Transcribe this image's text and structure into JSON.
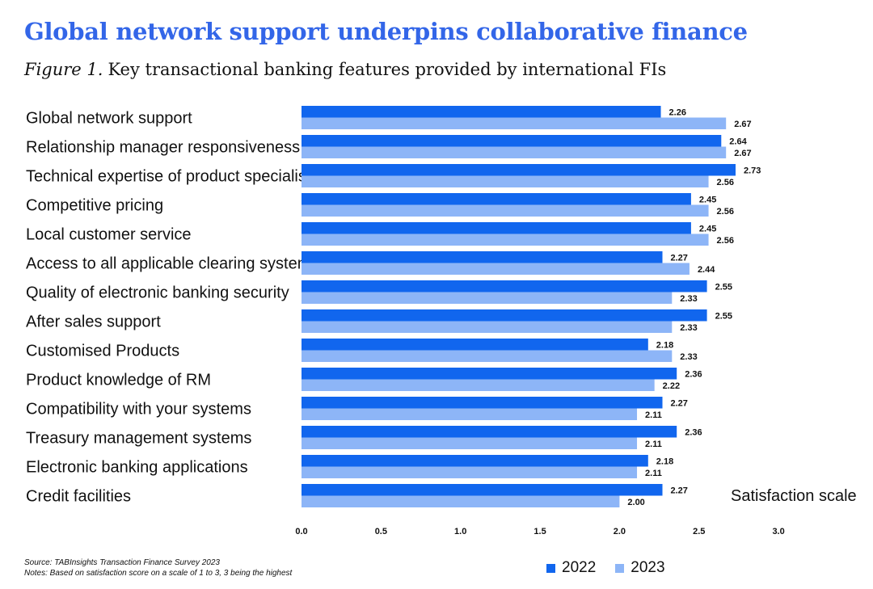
{
  "header": {
    "title": "Global network support underpins collaborative finance",
    "figure_number": "Figure 1.",
    "figure_caption": "Key transactional banking features provided by international FIs"
  },
  "colors": {
    "title": "#3366e8",
    "series_2022": "#1166ee",
    "series_2023": "#8db5f7"
  },
  "chart_data": {
    "type": "bar",
    "orientation": "horizontal",
    "categories": [
      "Global network support",
      "Relationship manager responsiveness",
      "Technical expertise of product specialists",
      "Competitive pricing",
      "Local customer service",
      "Access to all applicable clearing systems",
      "Quality of electronic banking security",
      "After sales support",
      "Customised Products",
      "Product knowledge of RM",
      "Compatibility with your systems",
      "Treasury management systems",
      "Electronic banking applications",
      "Credit facilities"
    ],
    "series": [
      {
        "name": "2022",
        "values": [
          2.26,
          2.64,
          2.73,
          2.45,
          2.45,
          2.27,
          2.55,
          2.55,
          2.18,
          2.36,
          2.27,
          2.36,
          2.18,
          2.27
        ],
        "labels": [
          "2.26",
          "2.64",
          "2.73",
          "2.45",
          "2.45",
          "2.27",
          "2.55",
          "2.55",
          "2.18",
          "2.36",
          "2.27",
          "2.36",
          "2.18",
          "2.27"
        ]
      },
      {
        "name": "2023",
        "values": [
          2.67,
          2.67,
          2.56,
          2.56,
          2.56,
          2.44,
          2.33,
          2.33,
          2.33,
          2.22,
          2.11,
          2.11,
          2.11,
          2.0
        ],
        "labels": [
          "2.67",
          "2.67",
          "2.56",
          "2.56",
          "2.56",
          "2.44",
          "2.33",
          "2.33",
          "2.33",
          "2.22",
          "2.11",
          "2.11",
          "2.11",
          "2.00"
        ]
      }
    ],
    "xlim": [
      0,
      3
    ],
    "xticks": [
      "0.0",
      "0.5",
      "1.0",
      "1.5",
      "2.0",
      "2.5",
      "3.0"
    ],
    "xlabel": "Satisfaction scale",
    "grid": false,
    "legend": "bottom-right"
  },
  "footer": {
    "source": "Source: TABInsights Transaction Finance Survey 2023",
    "notes": "Notes: Based on satisfaction score on a scale of 1 to 3, 3 being the highest"
  }
}
